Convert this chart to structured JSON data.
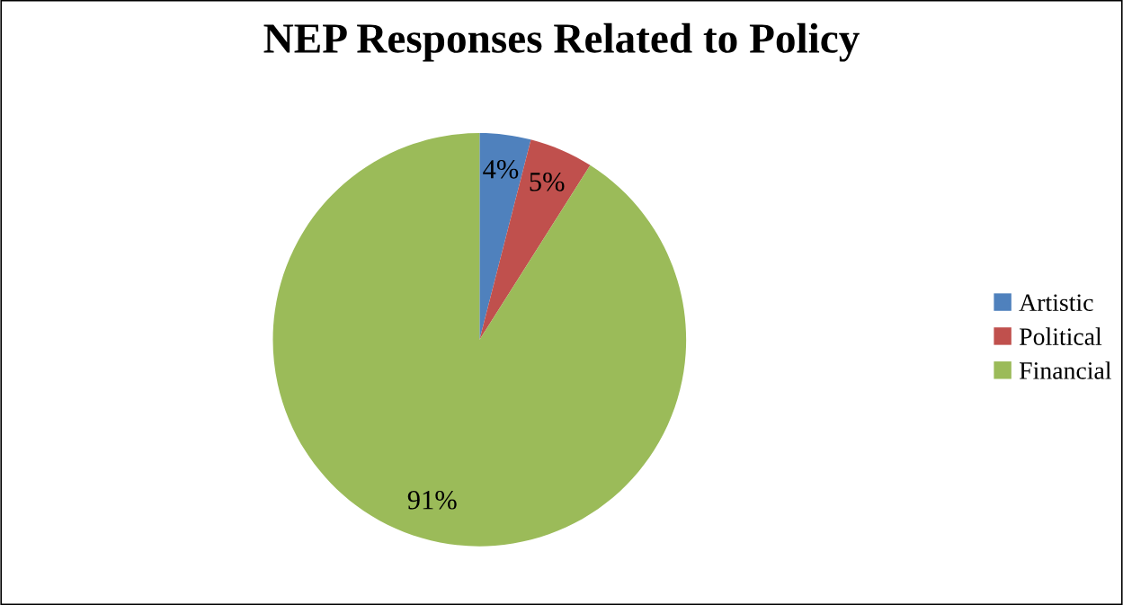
{
  "chart_data": {
    "type": "pie",
    "title": "NEP Responses Related to Policy",
    "categories": [
      "Artistic",
      "Political",
      "Financial"
    ],
    "values": [
      4,
      5,
      91
    ],
    "colors": [
      "#4f81bd",
      "#c0504d",
      "#9bbb59"
    ],
    "value_labels": [
      "4%",
      "5%",
      "91%"
    ],
    "legend": "right"
  }
}
